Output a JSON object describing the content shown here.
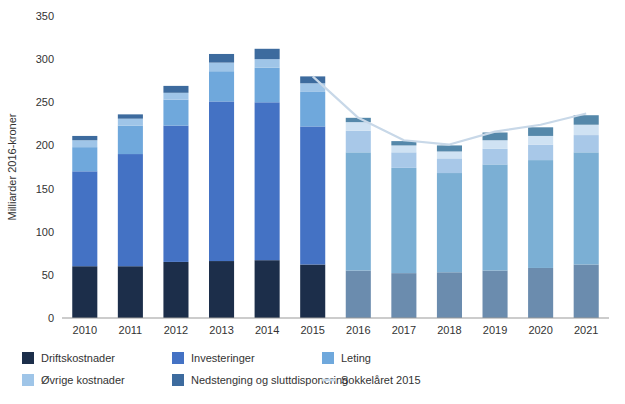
{
  "chart_data": {
    "type": "bar",
    "stacked": true,
    "grid": false,
    "legend": "bottom",
    "ylabel": "Milliarder 2016-kroner",
    "categories": [
      "2010",
      "2011",
      "2012",
      "2013",
      "2014",
      "2015",
      "2016",
      "2017",
      "2018",
      "2019",
      "2020",
      "2021"
    ],
    "ylim": [
      0,
      350
    ],
    "yticks": [
      0,
      50,
      100,
      150,
      200,
      250,
      300,
      350
    ],
    "series": [
      {
        "name": "Driftskostnader",
        "values": [
          60,
          60,
          65,
          66,
          67,
          62,
          55,
          52,
          53,
          55,
          58,
          62
        ],
        "colors": [
          "#1c2e4a",
          "#1c2e4a",
          "#1c2e4a",
          "#1c2e4a",
          "#1c2e4a",
          "#1c2e4a",
          "#6b8cae",
          "#6b8cae",
          "#6b8cae",
          "#6b8cae",
          "#6b8cae",
          "#6b8cae"
        ]
      },
      {
        "name": "Investeringer",
        "values": [
          110,
          130,
          158,
          185,
          183,
          160,
          137,
          122,
          115,
          123,
          125,
          130
        ],
        "colors": [
          "#4472c4",
          "#4472c4",
          "#4472c4",
          "#4472c4",
          "#4472c4",
          "#4472c4",
          "#7bafd4",
          "#7bafd4",
          "#7bafd4",
          "#7bafd4",
          "#7bafd4",
          "#7bafd4"
        ]
      },
      {
        "name": "Leting",
        "values": [
          28,
          33,
          30,
          35,
          40,
          40,
          25,
          18,
          17,
          18,
          18,
          20
        ],
        "colors": [
          "#6fa8dc",
          "#6fa8dc",
          "#6fa8dc",
          "#6fa8dc",
          "#6fa8dc",
          "#6fa8dc",
          "#a8c8e8",
          "#a8c8e8",
          "#a8c8e8",
          "#a8c8e8",
          "#a8c8e8",
          "#a8c8e8"
        ]
      },
      {
        "name": "Øvrige kostnader",
        "values": [
          8,
          8,
          8,
          10,
          10,
          10,
          10,
          8,
          8,
          10,
          10,
          12
        ],
        "colors": [
          "#9fc5e8",
          "#9fc5e8",
          "#9fc5e8",
          "#9fc5e8",
          "#9fc5e8",
          "#9fc5e8",
          "#cfe2f3",
          "#cfe2f3",
          "#cfe2f3",
          "#cfe2f3",
          "#cfe2f3",
          "#cfe2f3"
        ]
      },
      {
        "name": "Nedstenging og sluttdisponering",
        "values": [
          5,
          5,
          8,
          10,
          12,
          8,
          5,
          5,
          7,
          9,
          10,
          11
        ],
        "colors": [
          "#3d6b9e",
          "#3d6b9e",
          "#3d6b9e",
          "#3d6b9e",
          "#3d6b9e",
          "#3d6b9e",
          "#5588aa",
          "#5588aa",
          "#5588aa",
          "#5588aa",
          "#5588aa",
          "#5588aa"
        ]
      },
      {
        "name": "Sokkelåret 2015",
        "type": "line",
        "color": "#c8d8e8",
        "values": [
          null,
          null,
          null,
          null,
          null,
          280,
          232,
          206,
          201,
          216,
          224,
          237
        ]
      }
    ]
  }
}
